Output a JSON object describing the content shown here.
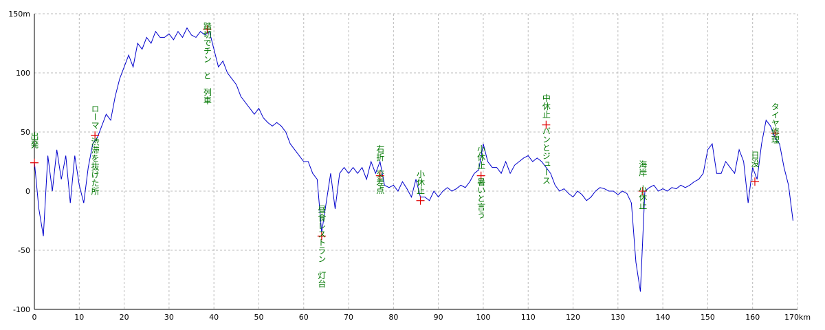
{
  "chart_data": {
    "type": "line",
    "x": [
      0,
      1,
      2,
      3,
      4,
      5,
      6,
      7,
      8,
      9,
      10,
      11,
      12,
      13,
      14,
      15,
      16,
      17,
      18,
      19,
      20,
      21,
      22,
      23,
      24,
      25,
      26,
      27,
      28,
      29,
      30,
      31,
      32,
      33,
      34,
      35,
      36,
      37,
      38,
      39,
      40,
      41,
      42,
      43,
      44,
      45,
      46,
      47,
      48,
      49,
      50,
      51,
      52,
      53,
      54,
      55,
      56,
      57,
      58,
      59,
      60,
      61,
      62,
      63,
      64,
      65,
      66,
      67,
      68,
      69,
      70,
      71,
      72,
      73,
      74,
      75,
      76,
      77,
      78,
      79,
      80,
      81,
      82,
      83,
      84,
      85,
      86,
      87,
      88,
      89,
      90,
      91,
      92,
      93,
      94,
      95,
      96,
      97,
      98,
      99,
      100,
      101,
      102,
      103,
      104,
      105,
      106,
      107,
      108,
      109,
      110,
      111,
      112,
      113,
      114,
      115,
      116,
      117,
      118,
      119,
      120,
      121,
      122,
      123,
      124,
      125,
      126,
      127,
      128,
      129,
      130,
      131,
      132,
      133,
      134,
      135,
      136,
      137,
      138,
      139,
      140,
      141,
      142,
      143,
      144,
      145,
      146,
      147,
      148,
      149,
      150,
      151,
      152,
      153,
      154,
      155,
      156,
      157,
      158,
      159,
      160,
      161,
      162,
      163,
      164,
      165,
      166,
      167,
      168,
      169
    ],
    "series": [
      {
        "color": "#0000cc",
        "values": [
          25,
          -15,
          -38,
          30,
          0,
          35,
          10,
          30,
          -10,
          30,
          5,
          -10,
          20,
          40,
          45,
          55,
          65,
          60,
          80,
          95,
          105,
          115,
          105,
          125,
          120,
          130,
          125,
          135,
          130,
          130,
          133,
          128,
          135,
          130,
          138,
          132,
          130,
          135,
          132,
          135,
          120,
          105,
          110,
          100,
          95,
          90,
          80,
          75,
          70,
          65,
          70,
          62,
          58,
          55,
          58,
          55,
          50,
          40,
          35,
          30,
          25,
          25,
          15,
          10,
          -35,
          -10,
          15,
          -15,
          15,
          20,
          15,
          20,
          15,
          20,
          10,
          25,
          15,
          25,
          5,
          3,
          5,
          0,
          8,
          2,
          -5,
          10,
          -5,
          -5,
          -8,
          0,
          -5,
          0,
          3,
          0,
          2,
          5,
          3,
          8,
          15,
          18,
          40,
          25,
          20,
          20,
          15,
          25,
          15,
          22,
          25,
          28,
          30,
          25,
          28,
          25,
          20,
          15,
          5,
          0,
          2,
          -2,
          -5,
          0,
          -3,
          -8,
          -5,
          0,
          3,
          2,
          0,
          0,
          -3,
          0,
          -2,
          -10,
          -60,
          -85,
          0,
          3,
          5,
          0,
          2,
          0,
          3,
          2,
          5,
          3,
          5,
          8,
          10,
          15,
          35,
          40,
          15,
          15,
          25,
          20,
          15,
          35,
          25,
          -10,
          20,
          10,
          40,
          60,
          55,
          45,
          40,
          20,
          5,
          -25
        ]
      }
    ],
    "xlim": [
      0,
      170
    ],
    "xticks": [
      0,
      10,
      20,
      30,
      40,
      50,
      60,
      70,
      80,
      90,
      100,
      110,
      120,
      130,
      140,
      150,
      160,
      {
        "value": 170,
        "label": "170km"
      }
    ],
    "ylim": [
      -100,
      150
    ],
    "yticks": [
      -100,
      -50,
      0,
      50,
      100,
      {
        "value": 150,
        "label": "150m"
      }
    ],
    "grid": true,
    "annotations": [
      {
        "text": "出発",
        "x": 0,
        "y": 24
      },
      {
        "text": "ローマ　渋滞を抜けた所",
        "x": 13.5,
        "y": 47
      },
      {
        "text": "踏切でチン　と　列車",
        "x": 38.5,
        "y": 137
      },
      {
        "text": "昼食レストラン　灯台",
        "x": 64,
        "y": -38
      },
      {
        "text": "右折　交差点",
        "x": 77,
        "y": 13
      },
      {
        "text": "小休止",
        "x": 86,
        "y": -8
      },
      {
        "text": "小休止　暑いと言う",
        "x": 99.5,
        "y": 13
      },
      {
        "text": "中休止　パンとジュース",
        "x": 114,
        "y": 56
      },
      {
        "text": "海岸　小休止",
        "x": 135.5,
        "y": 0
      },
      {
        "text": "日没",
        "x": 160.5,
        "y": 8
      },
      {
        "text": "タイヤ修理",
        "x": 165,
        "y": 49
      }
    ]
  }
}
